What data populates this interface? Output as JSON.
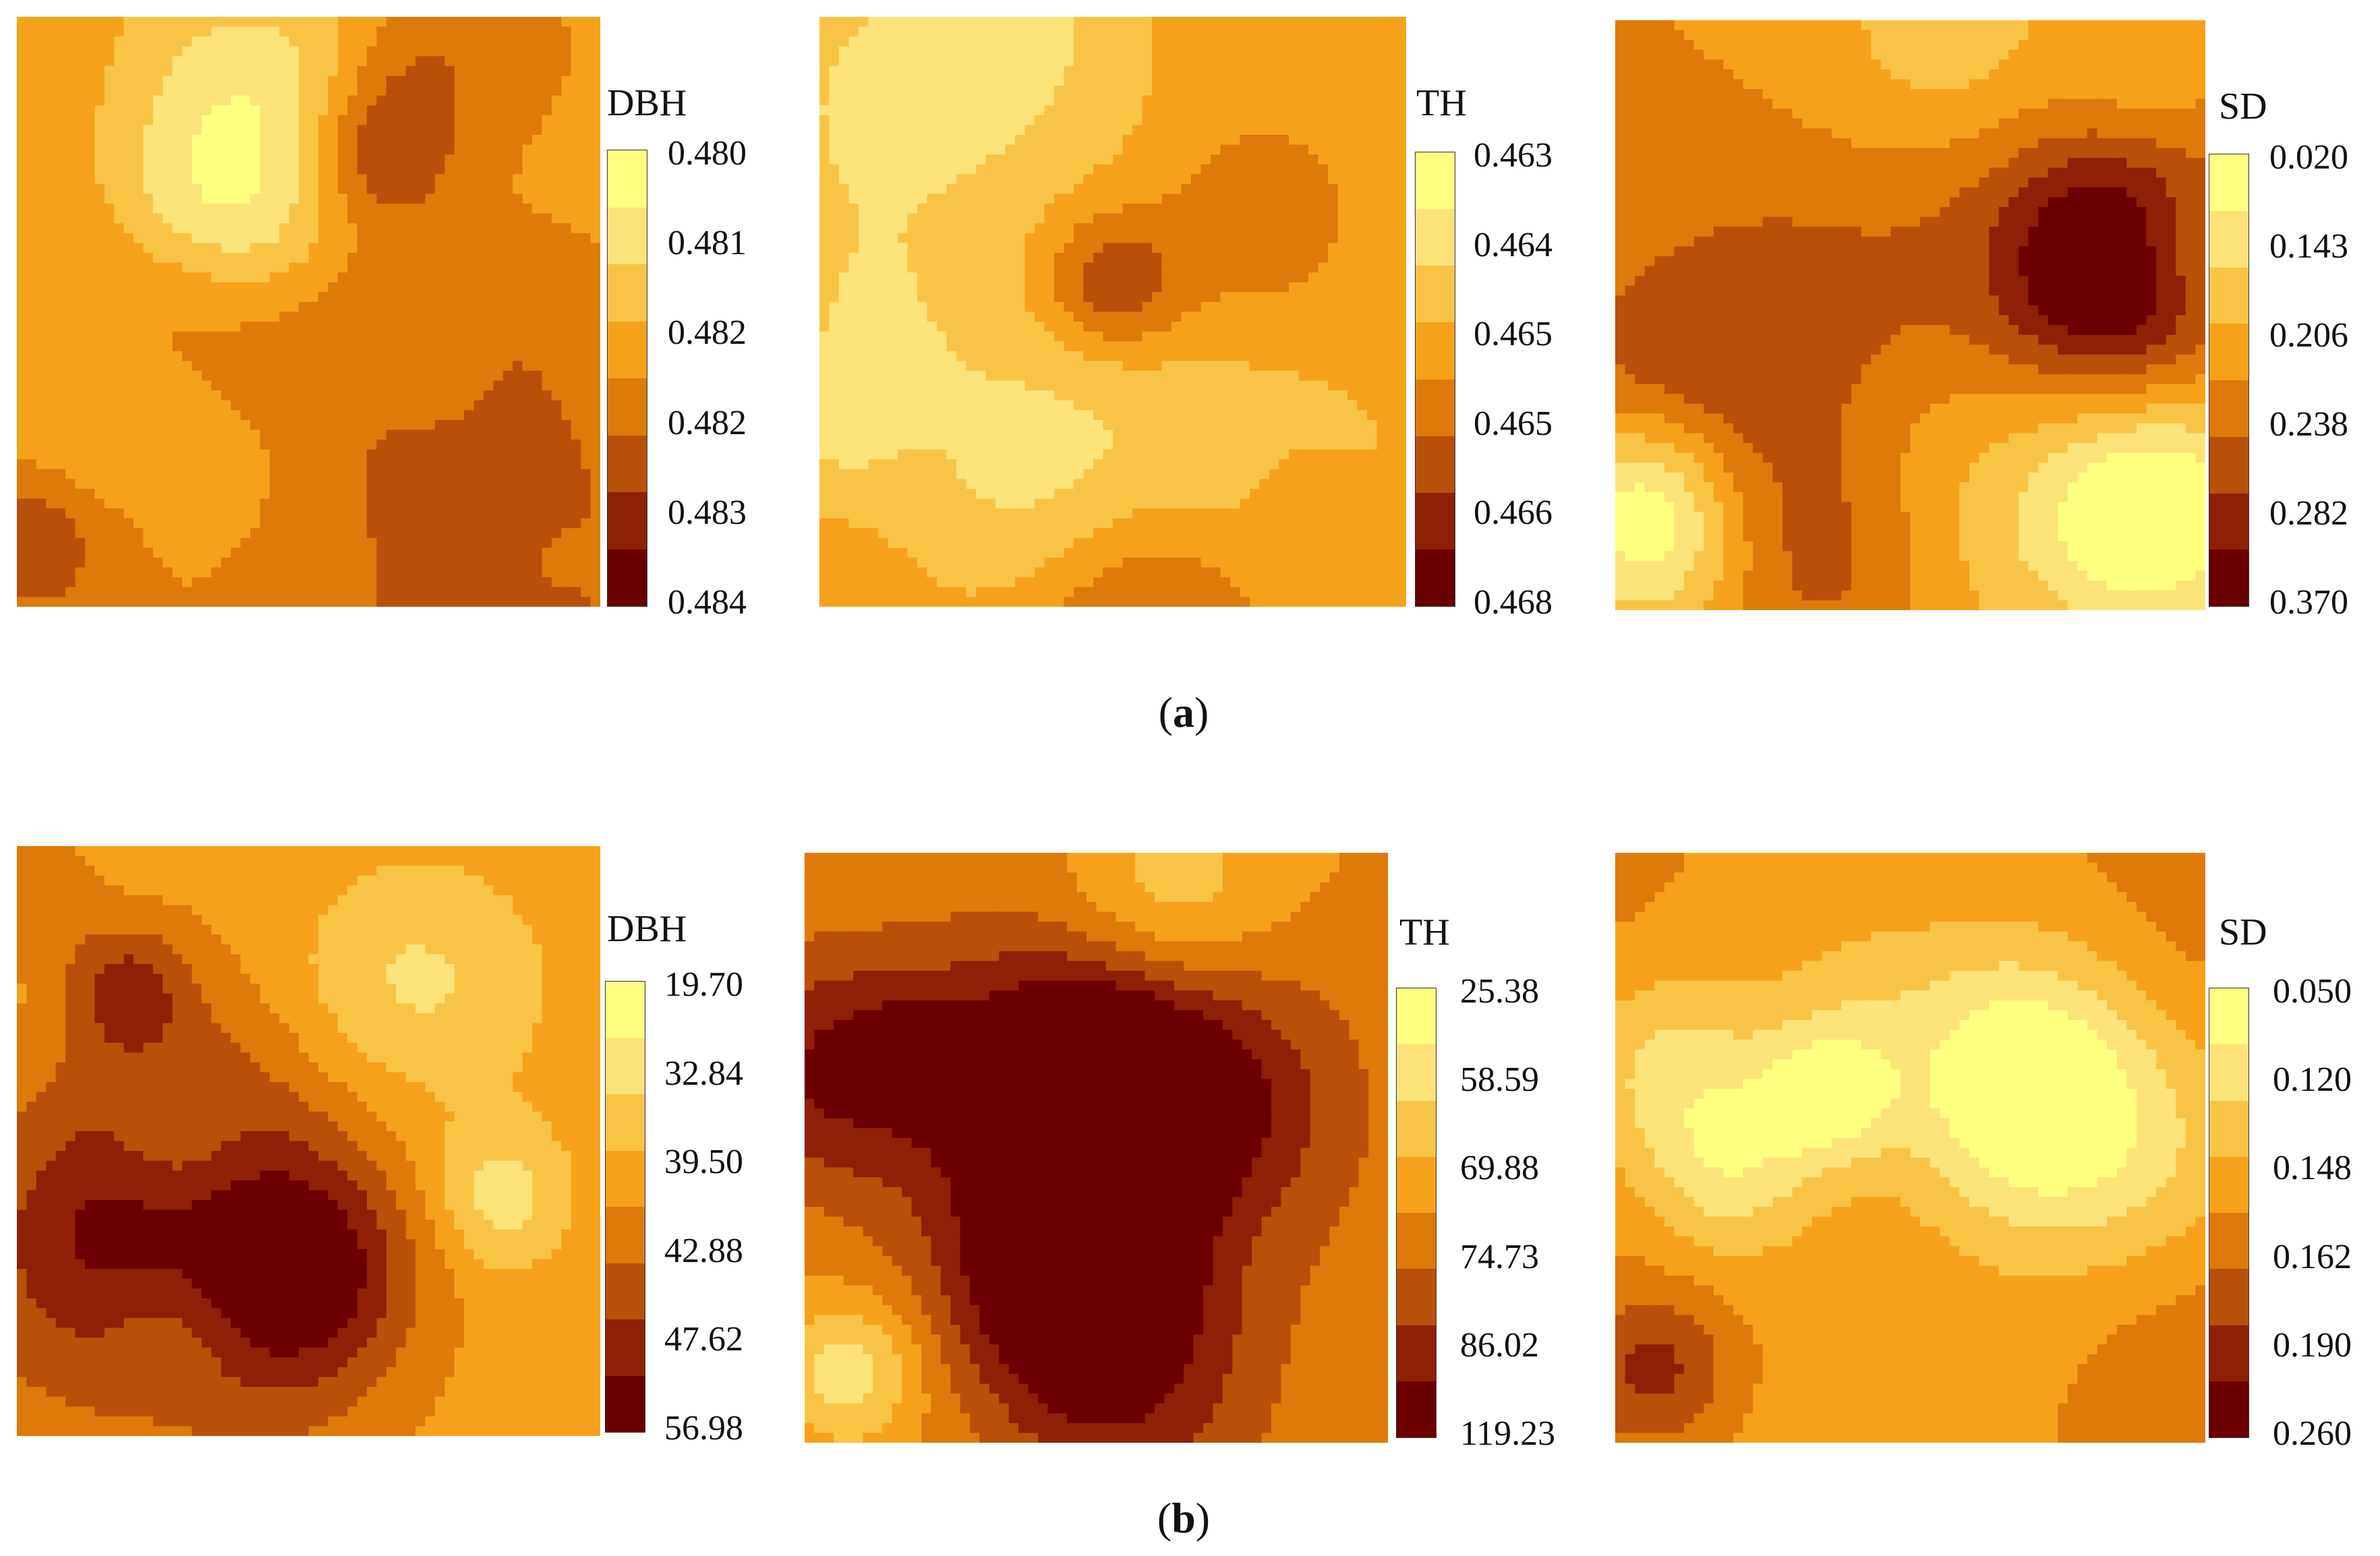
{
  "palette": [
    "#ffff80",
    "#fde27a",
    "#f9c446",
    "#f5a21a",
    "#dd7a0a",
    "#b8500a",
    "#8e2006",
    "#6a0000"
  ],
  "captions": {
    "a_open": "(",
    "a_letter": "a",
    "a_close": ")",
    "b_open": "(",
    "b_letter": "b",
    "b_close": ")"
  },
  "chart_data": [
    {
      "type": "heatmap",
      "group": "a",
      "title": "DBH",
      "levels": [
        "0.480",
        "0.481",
        "0.482",
        "0.482",
        "0.483",
        "0.484"
      ],
      "colorbar_boundaries_shown": 6
    },
    {
      "type": "heatmap",
      "group": "a",
      "title": "TH",
      "levels": [
        "0.463",
        "0.464",
        "0.465",
        "0.465",
        "0.466",
        "0.468"
      ]
    },
    {
      "type": "heatmap",
      "group": "a",
      "title": "SD",
      "levels": [
        "0.020",
        "0.143",
        "0.206",
        "0.238",
        "0.282",
        "0.370"
      ]
    },
    {
      "type": "heatmap",
      "group": "b",
      "title": "DBH",
      "levels": [
        "19.70",
        "32.84",
        "39.50",
        "42.88",
        "47.62",
        "56.98"
      ]
    },
    {
      "type": "heatmap",
      "group": "b",
      "title": "TH",
      "levels": [
        "25.38",
        "58.59",
        "69.88",
        "74.73",
        "86.02",
        "119.23"
      ]
    },
    {
      "type": "heatmap",
      "group": "b",
      "title": "SD",
      "levels": [
        "0.050",
        "0.120",
        "0.148",
        "0.162",
        "0.190",
        "0.260"
      ]
    }
  ]
}
